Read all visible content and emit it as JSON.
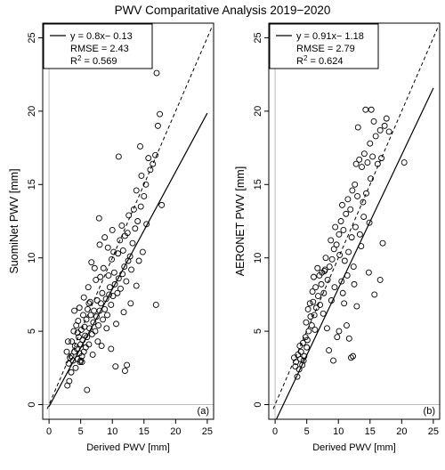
{
  "title": "PWV Comparitative Analysis 2019−2020",
  "chart_data": [
    {
      "type": "scatter",
      "panel_label": "(a)",
      "xlabel": "Derived PWV [mm]",
      "ylabel": "SuomiNet PWV [mm]",
      "xlim": [
        -1,
        26
      ],
      "ylim": [
        -1,
        26
      ],
      "xticks": [
        0,
        5,
        10,
        15,
        20,
        25
      ],
      "yticks": [
        0,
        5,
        10,
        15,
        20,
        25
      ],
      "legend": {
        "placement": "top-left",
        "equation": "y = 0.8x− 0.13",
        "rmse": "RMSE = 2.43",
        "r2_prefix": "R",
        "r2_exp": "2",
        "r2_value": " = 0.569"
      },
      "fit": {
        "slope": 0.8,
        "intercept": -0.13,
        "x_range": [
          0,
          25
        ]
      },
      "one_to_one": {
        "x_range": [
          -0.3,
          25.8
        ]
      },
      "points": [
        [
          3.2,
          1.6
        ],
        [
          3.5,
          2.2
        ],
        [
          3.1,
          2.8
        ],
        [
          3.8,
          3.0
        ],
        [
          3.5,
          3.3
        ],
        [
          4.0,
          3.6
        ],
        [
          3.3,
          3.2
        ],
        [
          4.2,
          2.5
        ],
        [
          4.5,
          3.1
        ],
        [
          4.8,
          3.5
        ],
        [
          3.6,
          4.3
        ],
        [
          4.1,
          4.0
        ],
        [
          4.4,
          3.8
        ],
        [
          4.9,
          2.9
        ],
        [
          5.2,
          3.3
        ],
        [
          5.5,
          3.6
        ],
        [
          5.0,
          4.1
        ],
        [
          5.3,
          4.4
        ],
        [
          5.8,
          3.9
        ],
        [
          4.7,
          4.6
        ],
        [
          3.9,
          5.0
        ],
        [
          4.3,
          5.4
        ],
        [
          4.6,
          5.7
        ],
        [
          5.1,
          5.1
        ],
        [
          5.6,
          5.3
        ],
        [
          6.0,
          4.6
        ],
        [
          6.3,
          4.1
        ],
        [
          5.9,
          5.8
        ],
        [
          6.4,
          5.2
        ],
        [
          6.8,
          4.8
        ],
        [
          5.4,
          6.1
        ],
        [
          6.1,
          6.5
        ],
        [
          6.6,
          6.1
        ],
        [
          7.0,
          5.6
        ],
        [
          7.3,
          5.0
        ],
        [
          7.1,
          6.4
        ],
        [
          6.5,
          7.0
        ],
        [
          7.5,
          6.0
        ],
        [
          7.8,
          5.4
        ],
        [
          8.0,
          6.4
        ],
        [
          7.6,
          7.1
        ],
        [
          8.2,
          6.9
        ],
        [
          8.5,
          5.8
        ],
        [
          8.8,
          6.5
        ],
        [
          9.0,
          7.2
        ],
        [
          8.4,
          7.6
        ],
        [
          9.2,
          6.1
        ],
        [
          9.5,
          7.5
        ],
        [
          9.8,
          6.8
        ],
        [
          10.1,
          7.4
        ],
        [
          9.6,
          8.0
        ],
        [
          10.4,
          8.2
        ],
        [
          10.8,
          7.6
        ],
        [
          11.0,
          8.6
        ],
        [
          10.3,
          9.0
        ],
        [
          11.3,
          7.9
        ],
        [
          11.6,
          8.9
        ],
        [
          11.9,
          9.4
        ],
        [
          12.2,
          8.4
        ],
        [
          12.5,
          9.8
        ],
        [
          10.9,
          10.3
        ],
        [
          11.7,
          10.5
        ],
        [
          12.8,
          10.1
        ],
        [
          13.2,
          11.0
        ],
        [
          12.0,
          11.5
        ],
        [
          13.6,
          12.0
        ],
        [
          14.0,
          12.5
        ],
        [
          12.6,
          12.9
        ],
        [
          14.5,
          13.5
        ],
        [
          15.0,
          14.2
        ],
        [
          13.8,
          14.6
        ],
        [
          15.3,
          15.0
        ],
        [
          14.6,
          15.6
        ],
        [
          16.0,
          16.0
        ],
        [
          16.4,
          16.4
        ],
        [
          15.7,
          16.8
        ],
        [
          16.8,
          17.0
        ],
        [
          14.4,
          17.6
        ],
        [
          17.2,
          19.0
        ],
        [
          17.5,
          19.8
        ],
        [
          17.0,
          22.6
        ],
        [
          11.0,
          16.9
        ],
        [
          17.8,
          13.6
        ],
        [
          16.9,
          6.8
        ],
        [
          12.0,
          2.3
        ],
        [
          12.3,
          2.7
        ],
        [
          10.5,
          2.6
        ],
        [
          9.8,
          3.8
        ],
        [
          6.0,
          1.0
        ],
        [
          2.9,
          1.3
        ],
        [
          7.2,
          9.3
        ],
        [
          6.7,
          9.7
        ],
        [
          8.0,
          10.9
        ],
        [
          8.8,
          11.4
        ],
        [
          7.9,
          12.7
        ],
        [
          9.3,
          10.7
        ],
        [
          10.0,
          11.9
        ],
        [
          11.5,
          12.2
        ],
        [
          5.5,
          7.3
        ],
        [
          6.2,
          8.0
        ],
        [
          4.8,
          6.6
        ],
        [
          8.6,
          9.3
        ],
        [
          9.9,
          9.9
        ],
        [
          12.9,
          6.9
        ],
        [
          13.8,
          8.1
        ],
        [
          14.8,
          10.4
        ],
        [
          15.4,
          12.3
        ],
        [
          13.4,
          13.3
        ],
        [
          3.0,
          4.3
        ],
        [
          2.8,
          3.6
        ],
        [
          4.0,
          6.4
        ],
        [
          5.2,
          2.9
        ],
        [
          6.9,
          3.4
        ],
        [
          7.7,
          4.3
        ],
        [
          8.3,
          4.0
        ],
        [
          9.1,
          5.2
        ],
        [
          10.6,
          5.5
        ],
        [
          11.8,
          6.3
        ],
        [
          6.3,
          6.9
        ],
        [
          7.4,
          8.5
        ],
        [
          8.1,
          8.7
        ],
        [
          9.4,
          8.8
        ],
        [
          10.2,
          10.4
        ],
        [
          11.2,
          11.2
        ],
        [
          12.4,
          11.7
        ],
        [
          13.0,
          9.2
        ],
        [
          14.2,
          9.8
        ],
        [
          5.7,
          4.7
        ],
        [
          4.5,
          4.9
        ],
        [
          5.0,
          3.0
        ]
      ]
    },
    {
      "type": "scatter",
      "panel_label": "(b)",
      "xlabel": "Derived PWV [mm]",
      "ylabel": "AERONET PWV [mm]",
      "xlim": [
        -1,
        26
      ],
      "ylim": [
        -1,
        26
      ],
      "xticks": [
        0,
        5,
        10,
        15,
        20,
        25
      ],
      "yticks": [
        0,
        5,
        10,
        15,
        20,
        25
      ],
      "legend": {
        "placement": "top-left",
        "equation": "y = 0.91x− 1.18",
        "rmse": "RMSE = 2.79",
        "r2_prefix": "R",
        "r2_exp": "2",
        "r2_value": " = 0.624"
      },
      "fit": {
        "slope": 0.91,
        "intercept": -1.18,
        "x_range": [
          0,
          25
        ]
      },
      "one_to_one": {
        "x_range": [
          -0.3,
          25.8
        ]
      },
      "points": [
        [
          3.5,
          1.9
        ],
        [
          3.8,
          2.4
        ],
        [
          3.3,
          2.9
        ],
        [
          4.0,
          3.1
        ],
        [
          3.6,
          3.4
        ],
        [
          4.3,
          2.7
        ],
        [
          4.1,
          3.6
        ],
        [
          3.9,
          4.0
        ],
        [
          4.6,
          3.3
        ],
        [
          4.4,
          4.2
        ],
        [
          4.8,
          4.6
        ],
        [
          5.0,
          3.9
        ],
        [
          5.3,
          5.0
        ],
        [
          4.9,
          5.6
        ],
        [
          5.6,
          6.0
        ],
        [
          5.2,
          6.5
        ],
        [
          5.8,
          5.4
        ],
        [
          6.2,
          6.1
        ],
        [
          6.0,
          7.0
        ],
        [
          6.5,
          6.6
        ],
        [
          6.8,
          7.4
        ],
        [
          7.1,
          6.8
        ],
        [
          6.4,
          8.0
        ],
        [
          7.3,
          8.2
        ],
        [
          7.7,
          7.6
        ],
        [
          7.0,
          8.8
        ],
        [
          7.9,
          9.2
        ],
        [
          8.3,
          8.5
        ],
        [
          8.6,
          9.4
        ],
        [
          8.0,
          10.0
        ],
        [
          9.0,
          9.9
        ],
        [
          9.3,
          10.6
        ],
        [
          8.8,
          11.2
        ],
        [
          9.7,
          10.9
        ],
        [
          10.1,
          11.6
        ],
        [
          9.5,
          12.1
        ],
        [
          10.4,
          12.5
        ],
        [
          10.8,
          11.9
        ],
        [
          11.2,
          13.0
        ],
        [
          10.6,
          13.6
        ],
        [
          11.5,
          14.0
        ],
        [
          11.9,
          13.3
        ],
        [
          12.2,
          14.6
        ],
        [
          12.6,
          15.0
        ],
        [
          13.0,
          14.2
        ],
        [
          12.8,
          16.4
        ],
        [
          13.3,
          16.7
        ],
        [
          13.7,
          16.2
        ],
        [
          14.1,
          17.1
        ],
        [
          14.6,
          16.5
        ],
        [
          15.0,
          17.8
        ],
        [
          15.4,
          16.9
        ],
        [
          15.9,
          18.3
        ],
        [
          16.2,
          16.4
        ],
        [
          16.8,
          16.8
        ],
        [
          17.3,
          19.0
        ],
        [
          15.6,
          19.3
        ],
        [
          16.6,
          18.7
        ],
        [
          17.6,
          19.5
        ],
        [
          18.0,
          18.6
        ],
        [
          14.3,
          20.1
        ],
        [
          15.2,
          20.1
        ],
        [
          13.1,
          18.9
        ],
        [
          20.4,
          16.5
        ],
        [
          17.0,
          11.0
        ],
        [
          16.6,
          8.5
        ],
        [
          15.7,
          7.5
        ],
        [
          14.8,
          9.0
        ],
        [
          14.0,
          12.8
        ],
        [
          13.6,
          10.8
        ],
        [
          12.5,
          8.2
        ],
        [
          12.9,
          6.7
        ],
        [
          12.3,
          3.3
        ],
        [
          12.0,
          3.2
        ],
        [
          11.7,
          4.5
        ],
        [
          11.3,
          5.4
        ],
        [
          10.9,
          6.9
        ],
        [
          10.5,
          8.4
        ],
        [
          10.1,
          5.0
        ],
        [
          9.8,
          4.6
        ],
        [
          9.2,
          3.0
        ],
        [
          8.5,
          3.7
        ],
        [
          8.2,
          5.2
        ],
        [
          7.6,
          6.2
        ],
        [
          7.4,
          9.0
        ],
        [
          7.8,
          9.1
        ],
        [
          6.7,
          9.3
        ],
        [
          6.1,
          8.7
        ],
        [
          5.9,
          7.7
        ],
        [
          5.5,
          6.9
        ],
        [
          11.0,
          9.8
        ],
        [
          11.6,
          10.4
        ],
        [
          12.1,
          11.4
        ],
        [
          12.7,
          12.1
        ],
        [
          13.4,
          11.6
        ],
        [
          10.2,
          10.2
        ],
        [
          9.4,
          8.0
        ],
        [
          8.9,
          7.1
        ],
        [
          10.7,
          7.6
        ],
        [
          11.4,
          8.8
        ],
        [
          12.4,
          9.4
        ],
        [
          13.9,
          13.8
        ],
        [
          14.4,
          14.4
        ],
        [
          15.1,
          15.4
        ],
        [
          14.9,
          12.4
        ],
        [
          3.0,
          3.2
        ],
        [
          3.2,
          2.6
        ],
        [
          4.5,
          3.0
        ],
        [
          5.1,
          4.4
        ],
        [
          6.3,
          5.1
        ]
      ]
    }
  ]
}
